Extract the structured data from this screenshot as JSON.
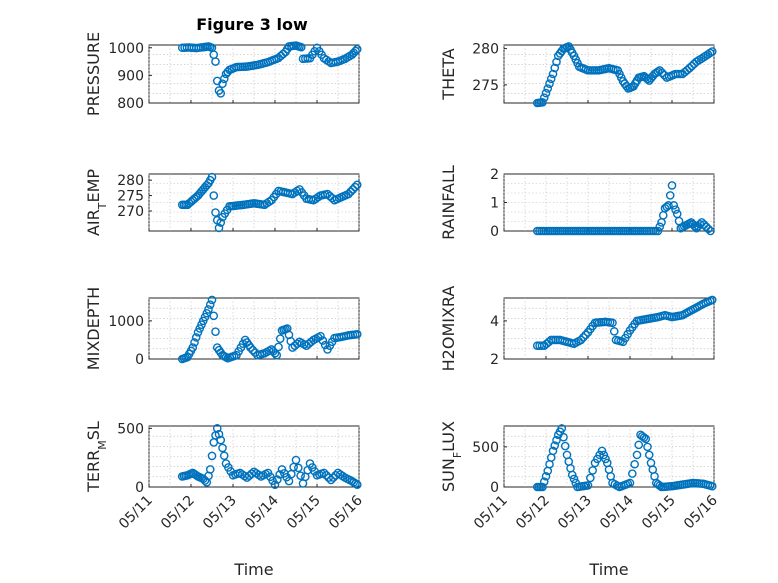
{
  "figure_title": "Figure 3 low",
  "colors": {
    "marker": "#0072bd",
    "axes": "#262626",
    "grid": "#bfbfbf"
  },
  "chart_data": [
    {
      "type": "scatter",
      "title": "Figure 3 low",
      "ylabel": "PRESSURE",
      "xlabel": "",
      "xlim": [
        "05/11",
        "05/16"
      ],
      "ylim": [
        800,
        1010
      ],
      "yticks": [
        "800",
        "900",
        "1000"
      ],
      "xticks": [],
      "grid": true,
      "points": [
        [
          "05/11 19:00",
          1000
        ],
        [
          "05/11 23:00",
          1001
        ],
        [
          "05/12 03:00",
          999
        ],
        [
          "05/12 07:00",
          1002
        ],
        [
          "05/12 10:00",
          1005
        ],
        [
          "05/12 12:00",
          1000
        ],
        [
          "05/12 14:00",
          950
        ],
        [
          "05/12 15:00",
          880
        ],
        [
          "05/12 16:00",
          845
        ],
        [
          "05/12 17:00",
          835
        ],
        [
          "05/12 18:00",
          870
        ],
        [
          "05/12 20:00",
          905
        ],
        [
          "05/12 22:00",
          920
        ],
        [
          "05/13 02:00",
          930
        ],
        [
          "05/13 08:00",
          932
        ],
        [
          "05/13 14:00",
          938
        ],
        [
          "05/13 20:00",
          948
        ],
        [
          "05/14 02:00",
          963
        ],
        [
          "05/14 06:00",
          985
        ],
        [
          "05/14 08:00",
          1005
        ],
        [
          "05/14 12:00",
          1008
        ],
        [
          "05/14 15:00",
          1002
        ],
        [
          "05/14 16:00",
          960
        ],
        [
          "05/14 20:00",
          962
        ],
        [
          "05/15 00:00",
          1000
        ],
        [
          "05/15 04:00",
          962
        ],
        [
          "05/15 08:00",
          945
        ],
        [
          "05/15 12:00",
          950
        ],
        [
          "05/15 16:00",
          960
        ],
        [
          "05/15 20:00",
          975
        ],
        [
          "05/15 23:00",
          995
        ]
      ]
    },
    {
      "type": "scatter",
      "ylabel": "THETA",
      "xlabel": "",
      "xlim": [
        "05/11",
        "05/16"
      ],
      "ylim": [
        272.5,
        280.5
      ],
      "yticks": [
        "275",
        "280"
      ],
      "xticks": [],
      "grid": true,
      "points": [
        [
          "05/11 19:00",
          272.5
        ],
        [
          "05/11 22:00",
          272.6
        ],
        [
          "05/12 01:00",
          274.5
        ],
        [
          "05/12 04:00",
          276.5
        ],
        [
          "05/12 07:00",
          279.0
        ],
        [
          "05/12 10:00",
          280.0
        ],
        [
          "05/12 13:00",
          280.3
        ],
        [
          "05/12 16:00",
          279.0
        ],
        [
          "05/12 19:00",
          277.5
        ],
        [
          "05/13 00:00",
          277.0
        ],
        [
          "05/13 06:00",
          277.0
        ],
        [
          "05/13 12:00",
          277.3
        ],
        [
          "05/13 17:00",
          277.0
        ],
        [
          "05/13 20:00",
          275.5
        ],
        [
          "05/13 23:00",
          274.5
        ],
        [
          "05/14 02:00",
          274.8
        ],
        [
          "05/14 05:00",
          276.0
        ],
        [
          "05/14 08:00",
          276.2
        ],
        [
          "05/14 11:00",
          275.6
        ],
        [
          "05/14 14:00",
          276.5
        ],
        [
          "05/14 17:00",
          277.0
        ],
        [
          "05/14 21:00",
          276.0
        ],
        [
          "05/15 02:00",
          276.5
        ],
        [
          "05/15 06:00",
          276.5
        ],
        [
          "05/15 10:00",
          277.3
        ],
        [
          "05/15 14:00",
          278.2
        ],
        [
          "05/15 18:00",
          278.8
        ],
        [
          "05/15 23:00",
          279.6
        ]
      ]
    },
    {
      "type": "scatter",
      "ylabel": "AIR_TEMP",
      "xlabel": "",
      "xlim": [
        "05/11",
        "05/16"
      ],
      "ylim": [
        263.5,
        282
      ],
      "yticks": [
        "270",
        "275",
        "280"
      ],
      "xticks": [],
      "grid": true,
      "points": [
        [
          "05/11 19:00",
          272.0
        ],
        [
          "05/11 22:00",
          272.0
        ],
        [
          "05/12 01:00",
          273.5
        ],
        [
          "05/12 04:00",
          275.0
        ],
        [
          "05/12 07:00",
          277.0
        ],
        [
          "05/12 10:00",
          279.0
        ],
        [
          "05/12 12:00",
          281.0
        ],
        [
          "05/12 13:00",
          275.0
        ],
        [
          "05/12 14:00",
          269.5
        ],
        [
          "05/12 15:00",
          267.0
        ],
        [
          "05/12 16:00",
          264.5
        ],
        [
          "05/12 18:00",
          268.0
        ],
        [
          "05/12 22:00",
          271.5
        ],
        [
          "05/13 06:00",
          272.0
        ],
        [
          "05/13 12:00",
          272.5
        ],
        [
          "05/13 18:00",
          272.0
        ],
        [
          "05/13 22:00",
          273.5
        ],
        [
          "05/14 02:00",
          276.5
        ],
        [
          "05/14 06:00",
          276.0
        ],
        [
          "05/14 10:00",
          275.5
        ],
        [
          "05/14 14:00",
          277.0
        ],
        [
          "05/14 18:00",
          274.0
        ],
        [
          "05/14 22:00",
          273.5
        ],
        [
          "05/15 02:00",
          275.0
        ],
        [
          "05/15 06:00",
          275.5
        ],
        [
          "05/15 10:00",
          273.5
        ],
        [
          "05/15 14:00",
          274.5
        ],
        [
          "05/15 18:00",
          275.5
        ],
        [
          "05/15 23:00",
          278.5
        ]
      ]
    },
    {
      "type": "scatter",
      "ylabel": "RAINFALL",
      "xlabel": "",
      "xlim": [
        "05/11",
        "05/16"
      ],
      "ylim": [
        0,
        2
      ],
      "yticks": [
        "0",
        "1",
        "2"
      ],
      "xticks": [],
      "grid": true,
      "points": [
        [
          "05/11 19:00",
          0
        ],
        [
          "05/12 00:00",
          0
        ],
        [
          "05/12 06:00",
          0
        ],
        [
          "05/12 12:00",
          0
        ],
        [
          "05/12 18:00",
          0
        ],
        [
          "05/13 00:00",
          0
        ],
        [
          "05/13 06:00",
          0
        ],
        [
          "05/13 12:00",
          0
        ],
        [
          "05/13 18:00",
          0
        ],
        [
          "05/14 00:00",
          0
        ],
        [
          "05/14 06:00",
          0
        ],
        [
          "05/14 12:00",
          0
        ],
        [
          "05/14 16:00",
          0
        ],
        [
          "05/14 18:00",
          0.3
        ],
        [
          "05/14 20:00",
          0.8
        ],
        [
          "05/14 22:00",
          0.9
        ],
        [
          "05/15 00:00",
          1.6
        ],
        [
          "05/15 01:00",
          0.9
        ],
        [
          "05/15 03:00",
          0.6
        ],
        [
          "05/15 05:00",
          0.1
        ],
        [
          "05/15 08:00",
          0.2
        ],
        [
          "05/15 11:00",
          0.3
        ],
        [
          "05/15 14:00",
          0.1
        ],
        [
          "05/15 17:00",
          0.3
        ],
        [
          "05/15 22:00",
          0
        ]
      ]
    },
    {
      "type": "scatter",
      "ylabel": "MIXDEPTH",
      "xlabel": "",
      "xlim": [
        "05/11",
        "05/16"
      ],
      "ylim": [
        0,
        1600
      ],
      "yticks": [
        "0",
        "1000"
      ],
      "xticks": [],
      "grid": true,
      "points": [
        [
          "05/11 19:00",
          0
        ],
        [
          "05/11 22:00",
          50
        ],
        [
          "05/12 01:00",
          300
        ],
        [
          "05/12 04:00",
          700
        ],
        [
          "05/12 07:00",
          1000
        ],
        [
          "05/12 10:00",
          1300
        ],
        [
          "05/12 12:00",
          1550
        ],
        [
          "05/12 15:00",
          300
        ],
        [
          "05/12 18:00",
          100
        ],
        [
          "05/12 21:00",
          20
        ],
        [
          "05/13 02:00",
          100
        ],
        [
          "05/13 07:00",
          500
        ],
        [
          "05/13 10:00",
          300
        ],
        [
          "05/13 14:00",
          100
        ],
        [
          "05/13 18:00",
          150
        ],
        [
          "05/13 22:00",
          250
        ],
        [
          "05/14 01:00",
          100
        ],
        [
          "05/14 04:00",
          750
        ],
        [
          "05/14 07:00",
          800
        ],
        [
          "05/14 10:00",
          300
        ],
        [
          "05/14 14:00",
          450
        ],
        [
          "05/14 18:00",
          350
        ],
        [
          "05/14 22:00",
          500
        ],
        [
          "05/15 02:00",
          600
        ],
        [
          "05/15 06:00",
          250
        ],
        [
          "05/15 10:00",
          550
        ],
        [
          "05/15 14:00",
          580
        ],
        [
          "05/15 18:00",
          620
        ],
        [
          "05/15 23:00",
          650
        ]
      ]
    },
    {
      "type": "scatter",
      "ylabel": "H2OMIXRA",
      "xlabel": "",
      "xlim": [
        "05/11",
        "05/16"
      ],
      "ylim": [
        2,
        5.2
      ],
      "yticks": [
        "2",
        "4"
      ],
      "xticks": [],
      "grid": true,
      "points": [
        [
          "05/11 19:00",
          2.7
        ],
        [
          "05/11 23:00",
          2.7
        ],
        [
          "05/12 03:00",
          3.0
        ],
        [
          "05/12 08:00",
          3.0
        ],
        [
          "05/12 12:00",
          2.9
        ],
        [
          "05/12 16:00",
          2.8
        ],
        [
          "05/12 20:00",
          3.0
        ],
        [
          "05/13 00:00",
          3.4
        ],
        [
          "05/13 04:00",
          3.9
        ],
        [
          "05/13 10:00",
          3.95
        ],
        [
          "05/13 14:00",
          3.9
        ],
        [
          "05/13 16:00",
          3.0
        ],
        [
          "05/13 20:00",
          2.9
        ],
        [
          "05/14 00:00",
          3.5
        ],
        [
          "05/14 04:00",
          4.0
        ],
        [
          "05/14 10:00",
          4.1
        ],
        [
          "05/14 16:00",
          4.2
        ],
        [
          "05/14 20:00",
          4.3
        ],
        [
          "05/15 00:00",
          4.2
        ],
        [
          "05/15 06:00",
          4.3
        ],
        [
          "05/15 12:00",
          4.6
        ],
        [
          "05/15 18:00",
          4.9
        ],
        [
          "05/15 23:00",
          5.1
        ]
      ]
    },
    {
      "type": "scatter",
      "ylabel": "TERR_MSL",
      "xlabel": "Time",
      "xlim": [
        "05/11",
        "05/16"
      ],
      "ylim": [
        0,
        520
      ],
      "yticks": [
        "0",
        "500"
      ],
      "xticks": [
        "05/11",
        "05/12",
        "05/13",
        "05/14",
        "05/15",
        "05/16"
      ],
      "grid": true,
      "points": [
        [
          "05/11 19:00",
          90
        ],
        [
          "05/11 22:00",
          100
        ],
        [
          "05/12 01:00",
          120
        ],
        [
          "05/12 04:00",
          90
        ],
        [
          "05/12 07:00",
          70
        ],
        [
          "05/12 09:00",
          40
        ],
        [
          "05/12 11:00",
          150
        ],
        [
          "05/12 13:00",
          380
        ],
        [
          "05/12 15:00",
          500
        ],
        [
          "05/12 17:00",
          400
        ],
        [
          "05/12 20:00",
          200
        ],
        [
          "05/13 00:00",
          100
        ],
        [
          "05/13 04:00",
          120
        ],
        [
          "05/13 08:00",
          80
        ],
        [
          "05/13 12:00",
          130
        ],
        [
          "05/13 16:00",
          90
        ],
        [
          "05/13 20:00",
          120
        ],
        [
          "05/14 00:00",
          20
        ],
        [
          "05/14 04:00",
          150
        ],
        [
          "05/14 08:00",
          50
        ],
        [
          "05/14 12:00",
          230
        ],
        [
          "05/14 16:00",
          30
        ],
        [
          "05/14 20:00",
          200
        ],
        [
          "05/15 00:00",
          100
        ],
        [
          "05/15 04:00",
          120
        ],
        [
          "05/15 08:00",
          60
        ],
        [
          "05/15 12:00",
          120
        ],
        [
          "05/15 16:00",
          80
        ],
        [
          "05/15 20:00",
          50
        ],
        [
          "05/15 23:00",
          20
        ]
      ]
    },
    {
      "type": "scatter",
      "ylabel": "SUN_FLUX",
      "xlabel": "Time",
      "xlim": [
        "05/11",
        "05/16"
      ],
      "ylim": [
        0,
        760
      ],
      "yticks": [
        "0",
        "500"
      ],
      "xticks": [
        "05/11",
        "05/12",
        "05/13",
        "05/14",
        "05/15",
        "05/16"
      ],
      "grid": true,
      "points": [
        [
          "05/11 19:00",
          0
        ],
        [
          "05/11 22:00",
          0
        ],
        [
          "05/12 01:00",
          200
        ],
        [
          "05/12 04:00",
          450
        ],
        [
          "05/12 07:00",
          650
        ],
        [
          "05/12 09:00",
          730
        ],
        [
          "05/12 12:00",
          400
        ],
        [
          "05/12 15:00",
          150
        ],
        [
          "05/12 18:00",
          0
        ],
        [
          "05/13 00:00",
          20
        ],
        [
          "05/13 04:00",
          300
        ],
        [
          "05/13 08:00",
          450
        ],
        [
          "05/13 11:00",
          300
        ],
        [
          "05/13 14:00",
          50
        ],
        [
          "05/13 18:00",
          0
        ],
        [
          "05/14 00:00",
          50
        ],
        [
          "05/14 04:00",
          400
        ],
        [
          "05/14 06:00",
          650
        ],
        [
          "05/14 09:00",
          600
        ],
        [
          "05/14 12:00",
          300
        ],
        [
          "05/14 15:00",
          50
        ],
        [
          "05/14 18:00",
          0
        ],
        [
          "05/15 00:00",
          10
        ],
        [
          "05/15 06:00",
          30
        ],
        [
          "05/15 12:00",
          50
        ],
        [
          "05/15 18:00",
          40
        ],
        [
          "05/15 23:00",
          10
        ]
      ]
    }
  ]
}
